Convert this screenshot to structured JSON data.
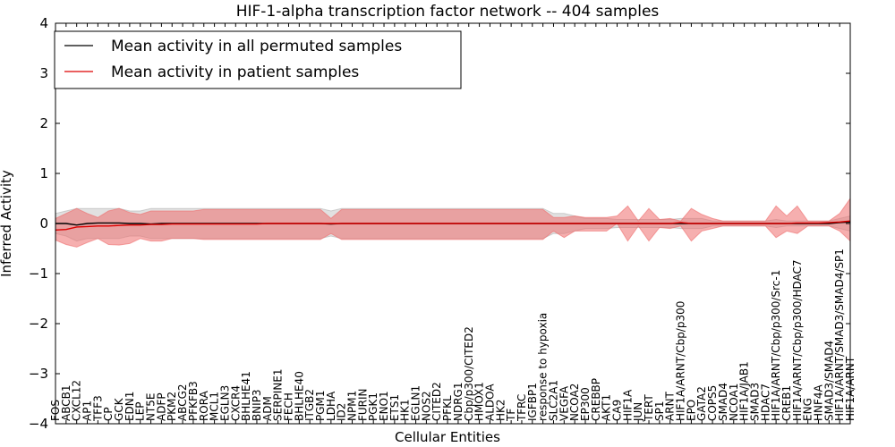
{
  "chart_data": {
    "type": "line",
    "title": "HIF-1-alpha transcription factor network -- 404 samples",
    "xlabel": "Cellular Entities",
    "ylabel": "Inferred Activity",
    "ylim": [
      -4,
      4
    ],
    "yticks": [
      -4,
      -3,
      -2,
      -1,
      0,
      1,
      2,
      3,
      4
    ],
    "ytick_labels": [
      "−4",
      "−3",
      "−2",
      "−1",
      "0",
      "1",
      "2",
      "3",
      "4"
    ],
    "legend_position": "top-left",
    "categories": [
      "FOS",
      "ABCB1",
      "CXCL12",
      "AP1",
      "TFF3",
      "CP",
      "GCK",
      "EDN1",
      "LEP",
      "NT5E",
      "ADFP",
      "PKM2",
      "ABCG2",
      "PFKFB3",
      "RORA",
      "MCL1",
      "EGLN3",
      "CXCR4",
      "BHLHE41",
      "BNIP3",
      "ADM",
      "SERPINE1",
      "FECH",
      "BHLHE40",
      "ITGB2",
      "PGM1",
      "LDHA",
      "ID2",
      "NPM1",
      "FURIN",
      "PGK1",
      "ENO1",
      "ETS1",
      "HK1",
      "EGLN1",
      "NOS2",
      "CITED2",
      "PFKL",
      "NDRG1",
      "Cbp/p300/CITED2",
      "HMOX1",
      "ALDOA",
      "HK2",
      "TF",
      "TFRC",
      "IGFBP1",
      "response to hypoxia",
      "SLC2A1",
      "VEGFA",
      "NCOA2",
      "EP300",
      "CREBBP",
      "AKT1",
      "CA9",
      "HIF1A",
      "JUN",
      "TERT",
      "SP1",
      "ARNT",
      "HIF1A/ARNT/Cbp/p300",
      "EPO",
      "GATA2",
      "COPS5",
      "SMAD4",
      "NCOA1",
      "HIF1A/JAB1",
      "SMAD3",
      "HDAC7",
      "HIF1A/ARNT/Cbp/p300/Src-1",
      "CREB1",
      "HIF1A/ARNT/Cbp/p300/HDAC7",
      "ENG",
      "HNF4A",
      "SMAD3/SMAD4",
      "HIF1A/ARNT/SMAD3/SMAD4/SP1",
      "HIF1A/ARNT"
    ],
    "series": [
      {
        "name": "Mean activity in all permuted samples",
        "color": "#000000",
        "values": [
          0.0,
          0.0,
          -0.03,
          0.0,
          0.01,
          0.01,
          0.01,
          0.0,
          0.0,
          -0.01,
          0.0,
          0.0,
          0.0,
          0.0,
          0.0,
          0.0,
          0.0,
          0.0,
          0.0,
          0.0,
          0.0,
          0.0,
          0.0,
          0.0,
          0.0,
          0.0,
          -0.01,
          0.0,
          0.0,
          0.0,
          0.0,
          0.0,
          0.0,
          0.0,
          0.0,
          0.0,
          0.0,
          0.0,
          0.0,
          0.0,
          0.0,
          0.0,
          0.0,
          0.0,
          0.0,
          0.0,
          0.0,
          0.0,
          0.0,
          0.0,
          0.0,
          0.0,
          0.0,
          0.0,
          0.0,
          0.0,
          0.0,
          0.0,
          0.0,
          0.0,
          0.0,
          0.0,
          0.0,
          0.0,
          0.0,
          0.0,
          0.0,
          0.0,
          0.0,
          0.0,
          0.0,
          0.0,
          0.0,
          0.0,
          0.02,
          0.03
        ],
        "band_lower": [
          -0.2,
          -0.25,
          -0.35,
          -0.3,
          -0.3,
          -0.3,
          -0.3,
          -0.25,
          -0.25,
          -0.3,
          -0.3,
          -0.3,
          -0.3,
          -0.3,
          -0.3,
          -0.3,
          -0.3,
          -0.3,
          -0.3,
          -0.3,
          -0.3,
          -0.3,
          -0.3,
          -0.3,
          -0.3,
          -0.3,
          -0.25,
          -0.3,
          -0.3,
          -0.3,
          -0.3,
          -0.3,
          -0.3,
          -0.3,
          -0.3,
          -0.3,
          -0.3,
          -0.3,
          -0.3,
          -0.3,
          -0.3,
          -0.3,
          -0.3,
          -0.3,
          -0.3,
          -0.3,
          -0.3,
          -0.2,
          -0.2,
          -0.15,
          -0.1,
          -0.1,
          -0.1,
          -0.08,
          -0.08,
          -0.08,
          -0.08,
          -0.08,
          -0.08,
          -0.1,
          -0.1,
          -0.1,
          -0.05,
          -0.05,
          -0.05,
          -0.05,
          -0.05,
          -0.05,
          -0.08,
          -0.05,
          -0.05,
          -0.05,
          -0.05,
          -0.05,
          -0.1,
          -0.15
        ],
        "band_upper": [
          0.2,
          0.25,
          0.3,
          0.3,
          0.3,
          0.3,
          0.3,
          0.25,
          0.25,
          0.3,
          0.3,
          0.3,
          0.3,
          0.3,
          0.3,
          0.3,
          0.3,
          0.3,
          0.3,
          0.3,
          0.3,
          0.3,
          0.3,
          0.3,
          0.3,
          0.3,
          0.25,
          0.3,
          0.3,
          0.3,
          0.3,
          0.3,
          0.3,
          0.3,
          0.3,
          0.3,
          0.3,
          0.3,
          0.3,
          0.3,
          0.3,
          0.3,
          0.3,
          0.3,
          0.3,
          0.3,
          0.3,
          0.2,
          0.2,
          0.15,
          0.1,
          0.1,
          0.1,
          0.08,
          0.08,
          0.08,
          0.08,
          0.08,
          0.08,
          0.1,
          0.1,
          0.1,
          0.05,
          0.05,
          0.05,
          0.05,
          0.05,
          0.05,
          0.08,
          0.05,
          0.05,
          0.05,
          0.05,
          0.05,
          0.1,
          0.15
        ]
      },
      {
        "name": "Mean activity in patient samples",
        "color": "#dd0000",
        "values": [
          -0.13,
          -0.12,
          -0.07,
          -0.06,
          -0.05,
          -0.05,
          -0.04,
          -0.03,
          -0.03,
          -0.02,
          -0.02,
          -0.01,
          -0.01,
          -0.01,
          -0.01,
          -0.01,
          -0.01,
          -0.01,
          -0.01,
          -0.01,
          0.0,
          0.0,
          0.0,
          0.0,
          0.0,
          0.0,
          0.0,
          0.0,
          0.0,
          0.0,
          0.0,
          0.0,
          0.0,
          0.0,
          0.0,
          0.0,
          0.0,
          0.0,
          0.0,
          0.0,
          0.0,
          0.0,
          0.0,
          0.0,
          0.0,
          0.0,
          0.0,
          0.0,
          0.0,
          0.0,
          0.0,
          0.0,
          0.0,
          0.0,
          0.0,
          0.0,
          0.0,
          0.0,
          0.0,
          0.02,
          0.0,
          0.0,
          0.0,
          0.0,
          0.0,
          0.0,
          0.0,
          0.0,
          0.0,
          0.0,
          0.01,
          0.01,
          0.01,
          0.02,
          0.03,
          0.05
        ],
        "band_lower": [
          -0.33,
          -0.42,
          -0.47,
          -0.38,
          -0.3,
          -0.42,
          -0.43,
          -0.4,
          -0.3,
          -0.35,
          -0.35,
          -0.3,
          -0.3,
          -0.3,
          -0.32,
          -0.32,
          -0.32,
          -0.32,
          -0.32,
          -0.32,
          -0.32,
          -0.32,
          -0.32,
          -0.32,
          -0.32,
          -0.32,
          -0.2,
          -0.32,
          -0.32,
          -0.32,
          -0.32,
          -0.32,
          -0.32,
          -0.32,
          -0.32,
          -0.32,
          -0.32,
          -0.32,
          -0.32,
          -0.32,
          -0.32,
          -0.32,
          -0.32,
          -0.32,
          -0.32,
          -0.32,
          -0.32,
          -0.15,
          -0.28,
          -0.15,
          -0.15,
          -0.15,
          -0.15,
          0.0,
          -0.35,
          -0.05,
          -0.35,
          -0.08,
          -0.1,
          -0.05,
          -0.35,
          -0.15,
          -0.1,
          -0.05,
          -0.05,
          -0.05,
          -0.05,
          -0.05,
          -0.28,
          -0.15,
          -0.2,
          -0.05,
          -0.05,
          -0.05,
          -0.15,
          -0.35
        ],
        "band_upper": [
          0.1,
          0.2,
          0.3,
          0.2,
          0.12,
          0.25,
          0.3,
          0.22,
          0.18,
          0.25,
          0.25,
          0.25,
          0.25,
          0.25,
          0.28,
          0.28,
          0.28,
          0.28,
          0.28,
          0.28,
          0.28,
          0.28,
          0.28,
          0.28,
          0.28,
          0.28,
          0.1,
          0.28,
          0.28,
          0.28,
          0.28,
          0.28,
          0.28,
          0.28,
          0.28,
          0.28,
          0.28,
          0.28,
          0.28,
          0.28,
          0.28,
          0.28,
          0.28,
          0.28,
          0.28,
          0.28,
          0.28,
          0.12,
          0.12,
          0.15,
          0.12,
          0.12,
          0.12,
          0.15,
          0.35,
          0.05,
          0.3,
          0.08,
          0.1,
          0.05,
          0.3,
          0.18,
          0.1,
          0.05,
          0.05,
          0.05,
          0.05,
          0.05,
          0.35,
          0.15,
          0.35,
          0.05,
          0.05,
          0.05,
          0.2,
          0.5
        ]
      }
    ]
  }
}
